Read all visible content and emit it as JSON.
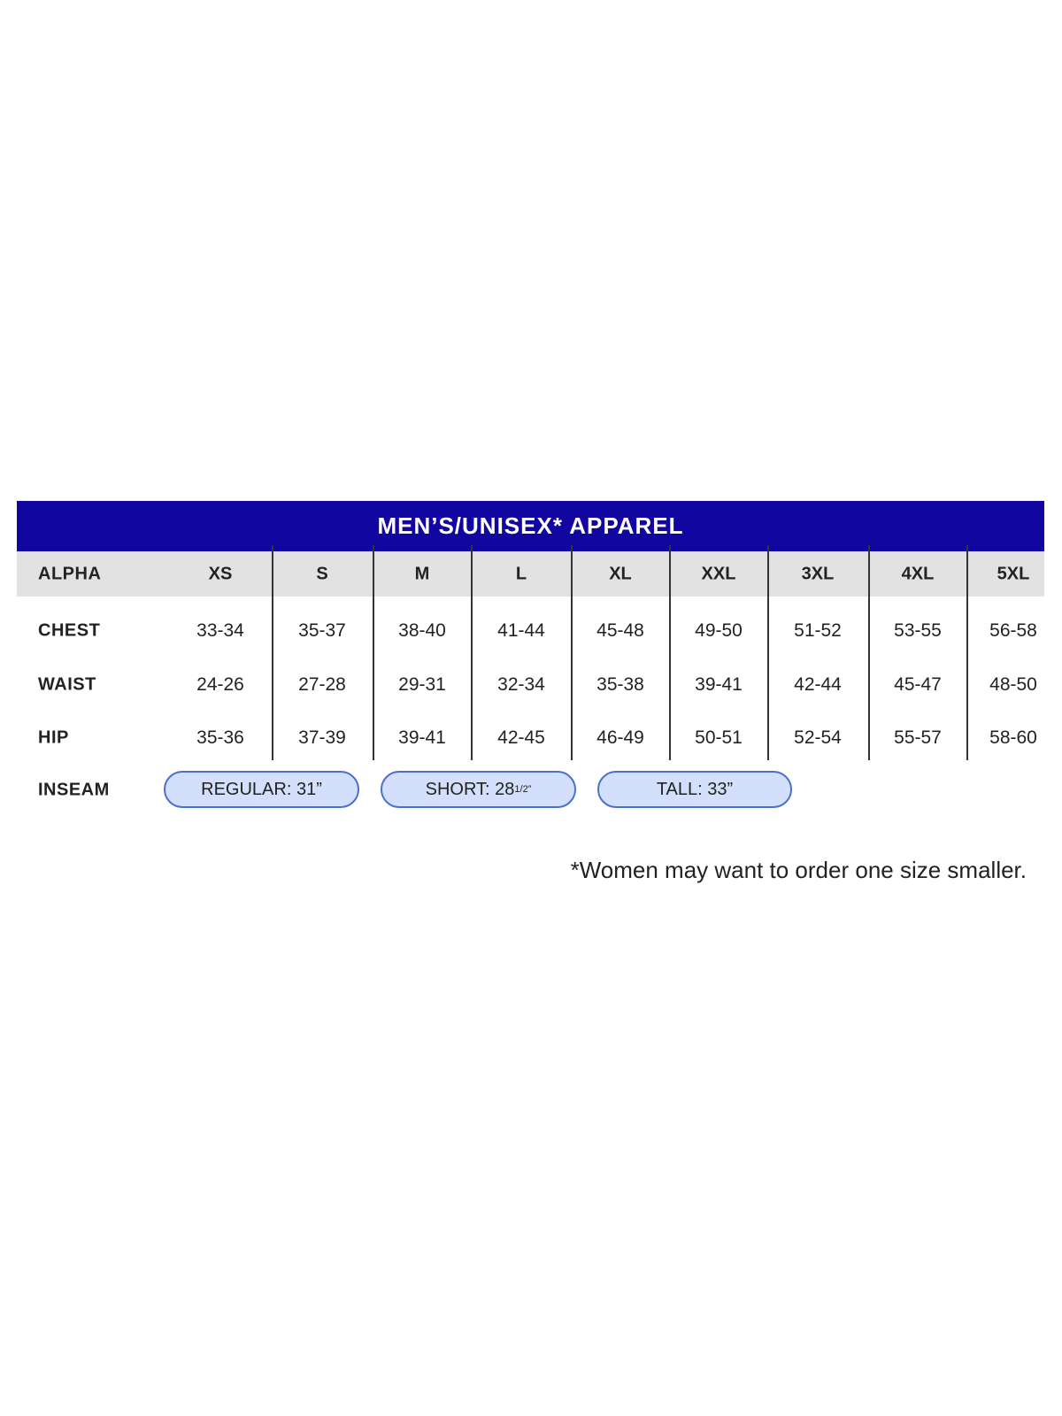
{
  "title": "MEN’S/UNISEX* APPAREL",
  "colors": {
    "header": "#1206a0",
    "header_row": "#e2e2e2",
    "pill_fill": "#d4dffc",
    "pill_border": "#4a6fd0"
  },
  "columns": [
    "ALPHA",
    "XS",
    "S",
    "M",
    "L",
    "XL",
    "XXL",
    "3XL",
    "4XL",
    "5XL"
  ],
  "rows": [
    {
      "label": "CHEST",
      "values": [
        "33-34",
        "35-37",
        "38-40",
        "41-44",
        "45-48",
        "49-50",
        "51-52",
        "53-55",
        "56-58"
      ]
    },
    {
      "label": "WAIST",
      "values": [
        "24-26",
        "27-28",
        "29-31",
        "32-34",
        "35-38",
        "39-41",
        "42-44",
        "45-47",
        "48-50"
      ]
    },
    {
      "label": "HIP",
      "values": [
        "35-36",
        "37-39",
        "39-41",
        "42-45",
        "46-49",
        "50-51",
        "52-54",
        "55-57",
        "58-60"
      ]
    }
  ],
  "inseam": {
    "label": "INSEAM",
    "options": [
      {
        "text": "REGULAR: 31”",
        "sup": ""
      },
      {
        "text": "SHORT: 28",
        "sup": "1/2”"
      },
      {
        "text": "TALL: 33”",
        "sup": ""
      }
    ]
  },
  "footnote": "*Women may want to order one size smaller."
}
